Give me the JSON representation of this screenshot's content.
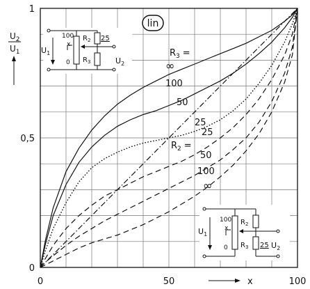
{
  "chart_data": {
    "type": "line",
    "xlabel": "x",
    "ylabel_num": "U",
    "ylabel_num_sub": "2",
    "ylabel_den": "U",
    "ylabel_den_sub": "1",
    "scale_badge": "lin",
    "xlim": [
      0,
      100
    ],
    "ylim": [
      0,
      1
    ],
    "x_ticks": [
      {
        "value": 0,
        "label": "0"
      },
      {
        "value": 50,
        "label": "50"
      },
      {
        "value": 100,
        "label": "100"
      }
    ],
    "y_ticks": [
      {
        "value": 0,
        "label": "0"
      },
      {
        "value": 0.5,
        "label": "0,5"
      },
      {
        "value": 1,
        "label": "1"
      }
    ],
    "grid": true,
    "x": [
      0,
      2,
      5,
      10,
      15,
      20,
      25,
      30,
      35,
      40,
      45,
      50,
      55,
      60,
      65,
      70,
      75,
      80,
      85,
      90,
      95,
      98,
      100
    ],
    "series": [
      {
        "label": "∞",
        "family": "R3",
        "style": "solid",
        "values": [
          0,
          0.105,
          0.23,
          0.37,
          0.46,
          0.53,
          0.585,
          0.63,
          0.665,
          0.695,
          0.72,
          0.745,
          0.765,
          0.785,
          0.805,
          0.825,
          0.845,
          0.865,
          0.89,
          0.915,
          0.95,
          0.975,
          1.0
        ]
      },
      {
        "label": "100",
        "family": "R3",
        "style": "solid",
        "values": [
          0,
          0.09,
          0.2,
          0.32,
          0.405,
          0.465,
          0.51,
          0.545,
          0.57,
          0.59,
          0.605,
          0.625,
          0.645,
          0.67,
          0.695,
          0.72,
          0.75,
          0.785,
          0.825,
          0.87,
          0.925,
          0.965,
          1.0
        ]
      },
      {
        "label": "50",
        "family": "R3",
        "style": "dotted",
        "values": [
          0,
          0.065,
          0.15,
          0.25,
          0.33,
          0.385,
          0.42,
          0.445,
          0.465,
          0.48,
          0.49,
          0.5,
          0.51,
          0.525,
          0.545,
          0.57,
          0.605,
          0.65,
          0.71,
          0.78,
          0.87,
          0.94,
          1.0
        ]
      },
      {
        "label": "25",
        "family": "R3",
        "style": "dashdot",
        "values": [
          0,
          0.02,
          0.05,
          0.1,
          0.15,
          0.2,
          0.25,
          0.3,
          0.35,
          0.4,
          0.45,
          0.5,
          0.55,
          0.6,
          0.65,
          0.7,
          0.75,
          0.8,
          0.85,
          0.9,
          0.95,
          0.98,
          1.0
        ]
      },
      {
        "label": "25",
        "family": "R2",
        "style": "dotted",
        "values": [
          0,
          0.065,
          0.15,
          0.25,
          0.33,
          0.385,
          0.42,
          0.445,
          0.465,
          0.48,
          0.49,
          0.5,
          0.51,
          0.525,
          0.545,
          0.57,
          0.605,
          0.65,
          0.71,
          0.78,
          0.87,
          0.94,
          1.0
        ]
      },
      {
        "label": "50",
        "family": "R2",
        "style": "dashed",
        "values": [
          0,
          0.035,
          0.085,
          0.15,
          0.2,
          0.24,
          0.275,
          0.3,
          0.325,
          0.35,
          0.37,
          0.39,
          0.41,
          0.435,
          0.465,
          0.5,
          0.54,
          0.59,
          0.65,
          0.725,
          0.82,
          0.9,
          1.0
        ]
      },
      {
        "label": "100",
        "family": "R2",
        "style": "dashed",
        "values": [
          0,
          0.02,
          0.045,
          0.085,
          0.12,
          0.15,
          0.18,
          0.205,
          0.23,
          0.255,
          0.28,
          0.305,
          0.33,
          0.355,
          0.385,
          0.415,
          0.455,
          0.5,
          0.56,
          0.64,
          0.75,
          0.85,
          1.0
        ]
      },
      {
        "label": "∞",
        "family": "R2",
        "style": "dashed",
        "values": [
          0,
          0.01,
          0.025,
          0.05,
          0.075,
          0.095,
          0.11,
          0.125,
          0.145,
          0.165,
          0.19,
          0.215,
          0.245,
          0.275,
          0.31,
          0.35,
          0.395,
          0.45,
          0.515,
          0.6,
          0.715,
          0.82,
          1.0
        ]
      }
    ],
    "annotations": {
      "r3_header": "R",
      "r3_header_sub": "3",
      "r3_header_eq": "=",
      "r2_header": "R",
      "r2_header_sub": "2",
      "r2_header_eq": "="
    },
    "insets": [
      {
        "position": "top-left",
        "pot_value": "100",
        "pot_wiper": "x",
        "pot_zero": "0",
        "u_in": "U",
        "u_in_sub": "1",
        "r2_label": "R",
        "r2_sub": "2",
        "r2_value": "25",
        "r3_label": "R",
        "r3_sub": "3",
        "u_out": "U",
        "u_out_sub": "2"
      },
      {
        "position": "bottom-right",
        "pot_value": "100",
        "pot_wiper": "x",
        "pot_zero": "0",
        "u_in": "U",
        "u_in_sub": "1",
        "r2_label": "R",
        "r2_sub": "2",
        "r3_label": "R",
        "r3_sub": "3",
        "r3_value": "25",
        "u_out": "U",
        "u_out_sub": "2"
      }
    ]
  }
}
